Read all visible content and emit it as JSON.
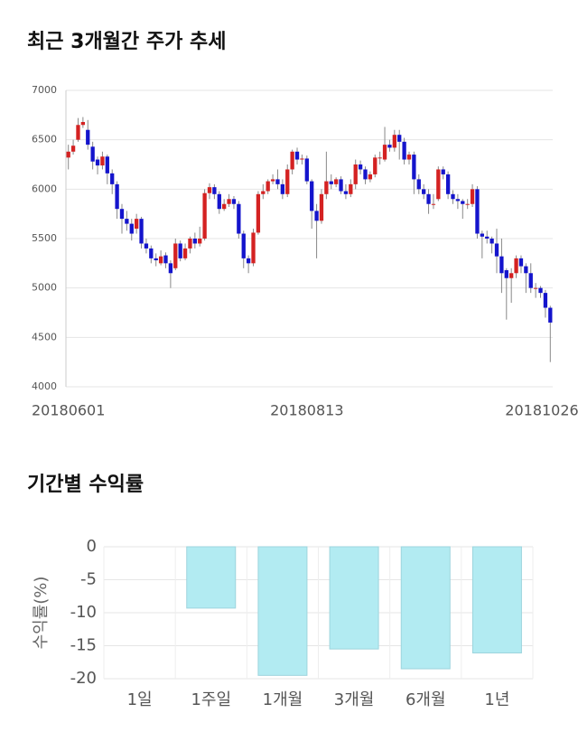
{
  "chart_data": [
    {
      "type": "candlestick",
      "title": "최근 3개월간 주가 추세",
      "up_color": "#d42222",
      "down_color": "#1414cc",
      "categories": [
        "20180601",
        null,
        null,
        null,
        null,
        null,
        null,
        null,
        null,
        null,
        null,
        null,
        null,
        null,
        null,
        null,
        null,
        null,
        null,
        null,
        null,
        null,
        null,
        null,
        null,
        null,
        null,
        null,
        null,
        null,
        null,
        null,
        null,
        null,
        null,
        null,
        null,
        null,
        null,
        null,
        null,
        null,
        null,
        null,
        null,
        null,
        null,
        null,
        null,
        "20180813",
        null,
        null,
        null,
        null,
        null,
        null,
        null,
        null,
        null,
        null,
        null,
        null,
        null,
        null,
        null,
        null,
        null,
        null,
        null,
        null,
        null,
        null,
        null,
        null,
        null,
        null,
        null,
        null,
        null,
        null,
        null,
        null,
        null,
        null,
        null,
        null,
        null,
        null,
        null,
        null,
        null,
        null,
        null,
        null,
        null,
        null,
        null,
        null,
        null,
        "20181026"
      ],
      "open": [
        6320,
        6380,
        6500,
        6650,
        6600,
        6430,
        6300,
        6240,
        6330,
        6160,
        6050,
        5800,
        5700,
        5650,
        5600,
        5700,
        5450,
        5400,
        5300,
        5250,
        5330,
        5250,
        5200,
        5450,
        5300,
        5400,
        5500,
        5450,
        5500,
        5960,
        6020,
        5950,
        5800,
        5850,
        5900,
        5850,
        5550,
        5300,
        5250,
        5560,
        5950,
        5980,
        6080,
        6100,
        6050,
        5950,
        6200,
        6380,
        6300,
        6310,
        6080,
        5780,
        5680,
        5950,
        6080,
        6050,
        6100,
        5980,
        5950,
        6050,
        6250,
        6200,
        6100,
        6150,
        6320,
        6300,
        6450,
        6420,
        6550,
        6480,
        6300,
        6350,
        6100,
        6000,
        5950,
        5850,
        5900,
        6200,
        6150,
        5950,
        5900,
        5880,
        5850,
        5850,
        6000,
        5550,
        5520,
        5500,
        5450,
        5320,
        5180,
        5100,
        5150,
        5300,
        5220,
        5150,
        5000,
        5000,
        4950,
        4800
      ],
      "high": [
        6450,
        6500,
        6720,
        6730,
        6700,
        6480,
        6330,
        6380,
        6350,
        6200,
        6080,
        5850,
        5780,
        5700,
        5750,
        5720,
        5500,
        5430,
        5350,
        5380,
        5360,
        5280,
        5500,
        5480,
        5450,
        5520,
        5560,
        5620,
        6000,
        6060,
        6050,
        5980,
        5900,
        5950,
        5930,
        5880,
        5580,
        5330,
        5600,
        5980,
        6050,
        6100,
        6150,
        6200,
        6100,
        6250,
        6400,
        6420,
        6350,
        6340,
        6100,
        5850,
        6000,
        6380,
        6150,
        6120,
        6130,
        6050,
        6100,
        6300,
        6290,
        6230,
        6180,
        6350,
        6380,
        6630,
        6500,
        6600,
        6600,
        6520,
        6380,
        6380,
        6150,
        6050,
        6000,
        5950,
        6230,
        6230,
        6180,
        5990,
        5950,
        5900,
        5900,
        6050,
        6030,
        5580,
        5580,
        5520,
        5600,
        5500,
        5200,
        5200,
        5330,
        5330,
        5250,
        5250,
        5050,
        5020,
        4980,
        4820
      ],
      "low": [
        6200,
        6350,
        6480,
        6620,
        6400,
        6200,
        6150,
        6200,
        6050,
        5950,
        5700,
        5550,
        5580,
        5480,
        5550,
        5400,
        5350,
        5250,
        5220,
        5230,
        5200,
        5000,
        5180,
        5270,
        5280,
        5350,
        5400,
        5420,
        5480,
        5900,
        5900,
        5750,
        5780,
        5820,
        5800,
        5500,
        5200,
        5150,
        5220,
        5540,
        5900,
        5950,
        6050,
        6000,
        5900,
        5920,
        6150,
        6250,
        6250,
        6050,
        5600,
        5300,
        5650,
        5900,
        6000,
        6020,
        5950,
        5900,
        5920,
        6000,
        6150,
        6050,
        6070,
        6120,
        6250,
        6280,
        6380,
        6380,
        6300,
        6250,
        6250,
        5950,
        5950,
        5900,
        5750,
        5800,
        5880,
        6100,
        5900,
        5850,
        5800,
        5700,
        5800,
        5820,
        5500,
        5300,
        5450,
        5350,
        5150,
        4950,
        4680,
        4850,
        5100,
        5150,
        4950,
        4950,
        4900,
        4900,
        4700,
        4250
      ],
      "close": [
        6380,
        6440,
        6650,
        6680,
        6450,
        6280,
        6240,
        6330,
        6160,
        6050,
        5800,
        5700,
        5650,
        5550,
        5700,
        5450,
        5400,
        5300,
        5280,
        5320,
        5250,
        5150,
        5450,
        5300,
        5400,
        5500,
        5450,
        5500,
        5960,
        6020,
        5950,
        5800,
        5850,
        5900,
        5850,
        5550,
        5300,
        5250,
        5560,
        5950,
        5980,
        6080,
        6100,
        6050,
        5950,
        6200,
        6380,
        6300,
        6310,
        6080,
        5780,
        5680,
        5950,
        6080,
        6050,
        6100,
        5980,
        5950,
        6050,
        6250,
        6200,
        6100,
        6150,
        6320,
        6320,
        6450,
        6420,
        6550,
        6480,
        6300,
        6350,
        6100,
        6000,
        5950,
        5850,
        5850,
        6200,
        6150,
        5950,
        5900,
        5880,
        5850,
        5850,
        6000,
        5550,
        5520,
        5500,
        5450,
        5320,
        5150,
        5100,
        5150,
        5300,
        5220,
        5150,
        5000,
        5000,
        4950,
        4800,
        4650
      ],
      "ylim": [
        4000,
        7000
      ],
      "yticks": [
        4000,
        4500,
        5000,
        5500,
        6000,
        6500,
        7000
      ],
      "grid": true
    },
    {
      "type": "bar",
      "title": "기간별 수익률",
      "y_label": "수익률(%)",
      "categories": [
        "1일",
        "1주일",
        "1개월",
        "3개월",
        "6개월",
        "1년"
      ],
      "values": [
        0,
        -9.3,
        -19.5,
        -15.5,
        -18.5,
        -16.1
      ],
      "color": "#b2ebf2",
      "edge_color": "#9dd4dd",
      "ylim": [
        -20,
        0
      ],
      "yticks": [
        -20,
        -15,
        -10,
        -5,
        0
      ],
      "grid": true
    }
  ]
}
